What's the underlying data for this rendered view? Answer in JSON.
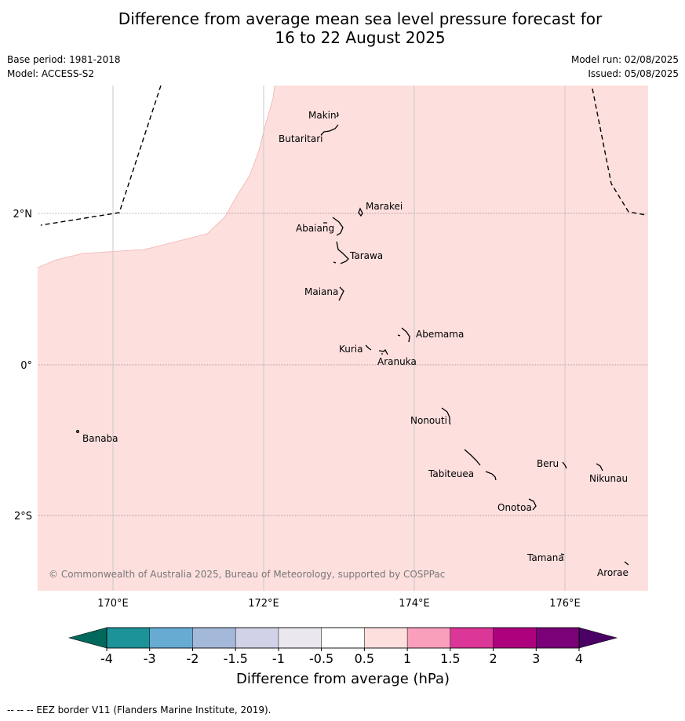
{
  "title": {
    "line1": "Difference from average mean sea level pressure forecast for",
    "line2": "16 to 22 August 2025"
  },
  "meta": {
    "base_period": "Base period: 1981-2018",
    "model": "Model: ACCESS-S2",
    "model_run": "Model run: 02/08/2025",
    "issued": "Issued: 05/08/2025"
  },
  "axes": {
    "x_ticks": [
      "170°E",
      "172°E",
      "174°E",
      "176°E"
    ],
    "y_ticks": [
      "2°N",
      "0°",
      "2°S"
    ]
  },
  "places": {
    "makin": "Makin",
    "butaritari": "Butaritari",
    "marakei": "Marakei",
    "abaiang": "Abaiang",
    "tarawa": "Tarawa",
    "maiana": "Maiana",
    "abemama": "Abemama",
    "kuria": "Kuria",
    "aranuka": "Aranuka",
    "nonouti": "Nonouti",
    "banaba": "Banaba",
    "tabiteuea": "Tabiteuea",
    "beru": "Beru",
    "nikunau": "Nikunau",
    "onotoa": "Onotoa",
    "tamana": "Tamana",
    "arorae": "Arorae"
  },
  "colors": {
    "anomaly_fill": "#fddfde",
    "no_data": "#ffffff"
  },
  "copyright": "© Commonwealth of Australia 2025, Bureau of Meteorology, supported by COSPPac",
  "colorbar": {
    "title": "Difference from average (hPa)",
    "ticks": [
      "-4",
      "-3",
      "-2",
      "-1.5",
      "-1",
      "-0.5",
      "0.5",
      "1",
      "1.5",
      "2",
      "3",
      "4"
    ],
    "colors": [
      "#1b9399",
      "#67abd3",
      "#a4b8da",
      "#d1d2e7",
      "#ebe7ee",
      "#ffffff",
      "#fddfde",
      "#f99fbb",
      "#dc3698",
      "#ad017e",
      "#7a0177"
    ],
    "under_color": "#00695c",
    "over_color": "#4a0064"
  },
  "footnote": "-- -- -- EEZ border V11 (Flanders Marine Institute, 2019)."
}
